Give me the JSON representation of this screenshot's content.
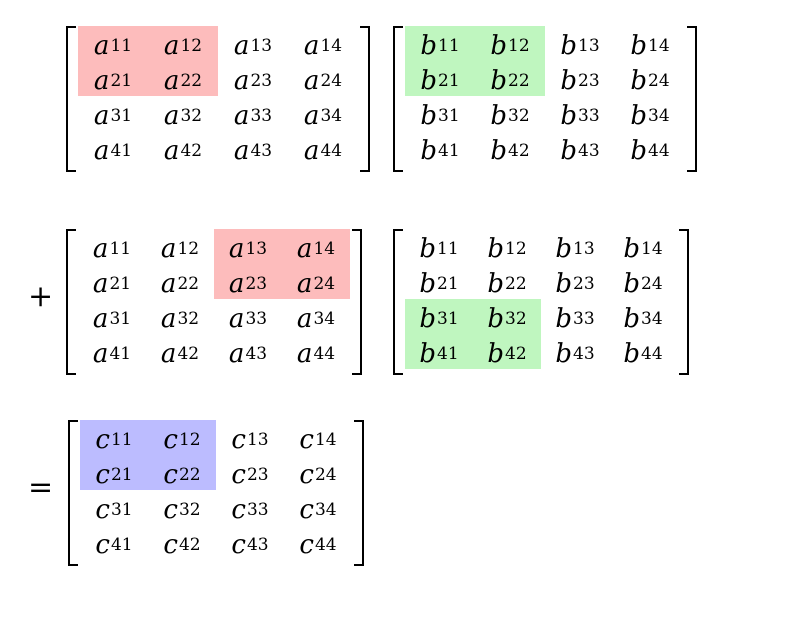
{
  "colors": {
    "red": "#fdbcbc",
    "green": "#bff6bf",
    "blue": "#bcbcff"
  },
  "rows": [
    {
      "operator": "",
      "matrices": [
        {
          "letter": "a",
          "highlight": {
            "color": "red",
            "rows": [
              0,
              1
            ],
            "cols": [
              0,
              1
            ]
          }
        },
        {
          "letter": "b",
          "highlight": {
            "color": "green",
            "rows": [
              0,
              1
            ],
            "cols": [
              0,
              1
            ]
          }
        }
      ]
    },
    {
      "operator": "+",
      "matrices": [
        {
          "letter": "a",
          "highlight": {
            "color": "red",
            "rows": [
              0,
              1
            ],
            "cols": [
              2,
              3
            ]
          }
        },
        {
          "letter": "b",
          "highlight": {
            "color": "green",
            "rows": [
              2,
              3
            ],
            "cols": [
              0,
              1
            ]
          }
        }
      ]
    },
    {
      "operator": "=",
      "matrices": [
        {
          "letter": "c",
          "highlight": {
            "color": "blue",
            "rows": [
              0,
              1
            ],
            "cols": [
              0,
              1
            ]
          }
        }
      ]
    }
  ]
}
